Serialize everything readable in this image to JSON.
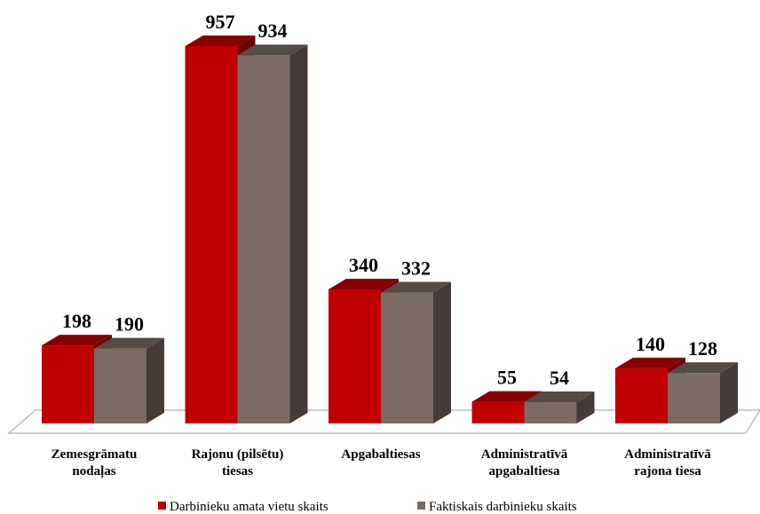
{
  "chart_data": {
    "type": "bar3d",
    "categories": [
      [
        "Zemesgrāmatu",
        "nodaļas"
      ],
      [
        "Rajonu (pilsētu)",
        "tiesas"
      ],
      [
        "Apgabaltiesas"
      ],
      [
        "Administratīvā",
        "apgabaltiesa"
      ],
      [
        "Administratīvā",
        "rajona tiesa"
      ]
    ],
    "series": [
      {
        "name": "Darbinieku amata vietu skaits",
        "color": "#c00000",
        "values": [
          198,
          957,
          340,
          55,
          140
        ]
      },
      {
        "name": "Faktiskais darbinieku skaits",
        "color": "#7b6b62",
        "values": [
          190,
          934,
          332,
          54,
          128
        ]
      }
    ],
    "legend": "bottom"
  }
}
